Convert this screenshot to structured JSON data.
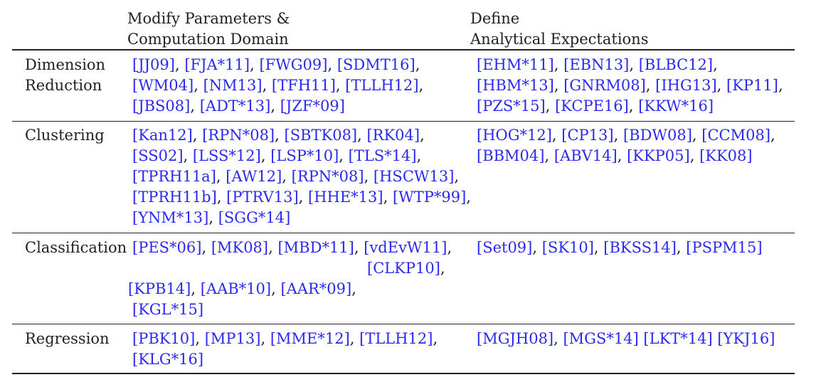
{
  "header": {
    "col1_line1": "Modify Parameters &",
    "col1_line2": "Computation Domain",
    "col2_line1": "Define",
    "col2_line2": "Analytical Expectations"
  },
  "rows": [
    {
      "category_line1": "Dimension",
      "category_line2": "Reduction",
      "col1_lines": [
        [
          "[JJ09]",
          "[FJA*11]",
          "[FWG09]",
          "[SDMT16]"
        ],
        [
          "[WM04]",
          "[NM13]",
          "[TFH11]",
          "[TLLH12]"
        ],
        [
          "[JBS08]",
          "[ADT*13]",
          "[JZF*09]"
        ]
      ],
      "col2_lines": [
        [
          "[EHM*11]",
          "[EBN13]",
          "[BLBC12]"
        ],
        [
          "[HBM*13]",
          "[GNRM08]",
          "[IHG13]",
          "[KP11]"
        ],
        [
          "[PZS*15]",
          "[KCPE16]",
          "[KKW*16]"
        ]
      ]
    },
    {
      "category_line1": "Clustering",
      "category_line2": "",
      "col1_lines": [
        [
          "[Kan12]",
          "[RPN*08]",
          "[SBTK08]",
          "[RK04]"
        ],
        [
          "[SS02]",
          "[LSS*12]",
          "[LSP*10]",
          "[TLS*14]"
        ],
        [
          "[TPRH11a]",
          "[AW12]",
          "[RPN*08]",
          "[HSCW13]"
        ],
        [
          "[TPRH11b]",
          "[PTRV13]",
          "[HHE*13]",
          "[WTP*99]"
        ],
        [
          "[YNM*13]",
          "[SGG*14]"
        ]
      ],
      "col2_lines": [
        [
          "[HOG*12]",
          "[CP13]",
          "[BDW08]",
          "[CCM08]"
        ],
        [
          "[BBM04]",
          "[ABV14]",
          "[KKP05]",
          "[KK08]"
        ]
      ]
    },
    {
      "category_line1": "Classification",
      "category_line2": "",
      "col1_lines": [
        [
          "[PES*06]",
          "[MK08]",
          "[MBD*11]",
          "[vdEvW11]"
        ],
        [
          "[CLKP10]"
        ],
        [
          "[KPB14]",
          "[AAB*10]",
          "[AAR*09]"
        ],
        [
          "[KGL*15]"
        ]
      ],
      "col2_lines": [
        [
          "[Set09]",
          "[SK10]",
          "[BKSS14]",
          "[PSPM15]"
        ]
      ]
    },
    {
      "category_line1": "Regression",
      "category_line2": "",
      "col1_lines": [
        [
          "[PBK10]",
          "[MP13]",
          "[MME*12]",
          "[TLLH12]"
        ],
        [
          "[KLG*16]"
        ]
      ],
      "col2_lines": [
        [
          "[MGJH08]",
          "[MGS*14] [LKT*14] [YKJ16]"
        ]
      ]
    }
  ]
}
